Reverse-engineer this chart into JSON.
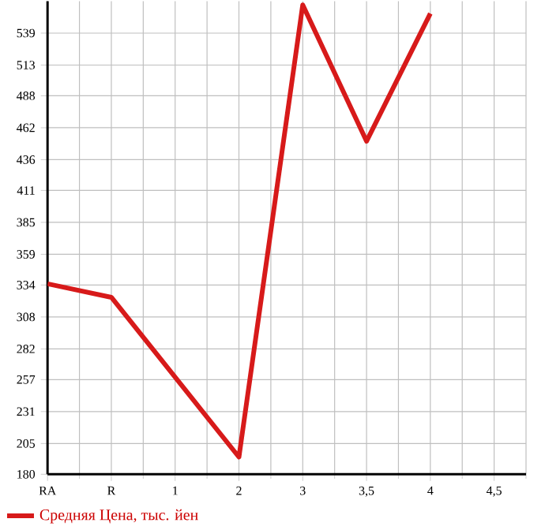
{
  "chart_data": {
    "type": "line",
    "categories": [
      "RA",
      "R",
      "1",
      "2",
      "3",
      "3,5",
      "4",
      "4,5"
    ],
    "series": [
      {
        "name": "Средняя Цена, тыс. йен",
        "color": "#d71a1a",
        "values": [
          335,
          324,
          null,
          194,
          562,
          451,
          555,
          null
        ]
      }
    ],
    "ylim": [
      180,
      565
    ],
    "yticks": [
      180,
      205,
      231,
      257,
      282,
      308,
      334,
      359,
      385,
      411,
      436,
      462,
      488,
      513,
      539
    ],
    "grid": true,
    "legend": "bottom",
    "marker": "none",
    "line_style": "solid"
  }
}
